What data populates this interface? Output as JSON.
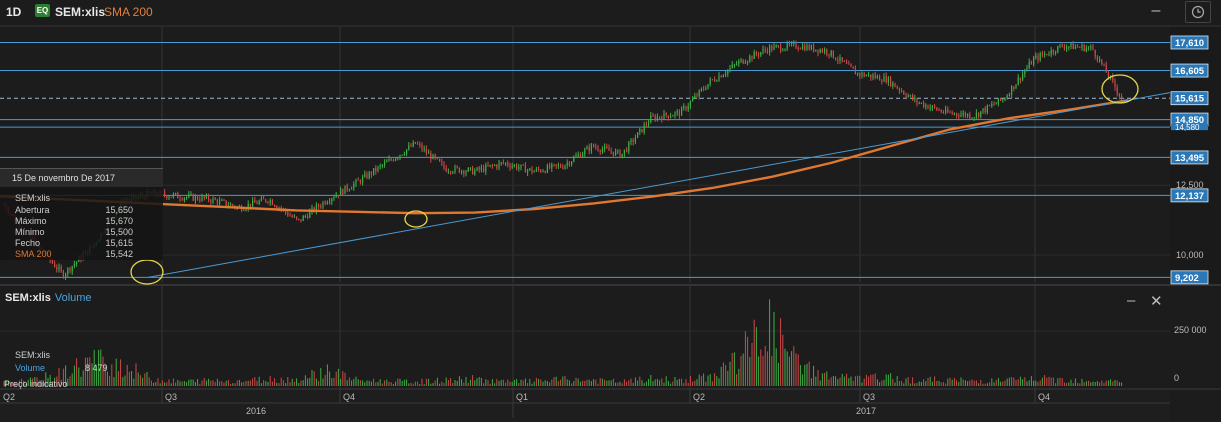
{
  "header": {
    "timeframe": "1D",
    "instrument_badge": "EQ",
    "symbol": "SEM:xlis",
    "indicator": "SMA 200",
    "minimize_icon": "minimize-icon",
    "clock_icon": "clock-icon"
  },
  "tooltip": {
    "date": "15 De novembro De 2017",
    "symbol": "SEM:xlis",
    "rows": [
      {
        "label": "Abertura",
        "value": "15,650"
      },
      {
        "label": "Máximo",
        "value": "15,670"
      },
      {
        "label": "Mínimo",
        "value": "15,500"
      },
      {
        "label": "Fecho",
        "value": "15,615"
      },
      {
        "label": "SMA 200",
        "value": "15,542"
      }
    ]
  },
  "volume_panel": {
    "symbol": "SEM:xlis",
    "indicator": "Volume",
    "info_symbol": "SEM:xlis",
    "info_label": "Volume",
    "info_value": "8 479",
    "note": "Preço indicativo",
    "minimize_icon": "minimize-icon",
    "close_icon": "close-icon"
  },
  "colors": {
    "background": "#1c1c1c",
    "up": "#3cb043",
    "down": "#d04848",
    "sma": "#e07830",
    "level_line": "#4a9ad4",
    "label_box": "#2a78b8",
    "highlight_circle": "#e6d84a"
  },
  "chart_data": {
    "type": "candlestick",
    "y_range": [
      9000,
      18200
    ],
    "price_labels": [
      "17,610",
      "16,605",
      "15,615",
      "14,850",
      "13,495",
      "12,500",
      "12,137",
      "10,000",
      "9,202"
    ],
    "obscured_label_fragment": "14,580",
    "quarter_labels": [
      "Q2",
      "Q3",
      "Q4",
      "Q1",
      "Q2",
      "Q3",
      "Q4"
    ],
    "year_labels": [
      "2016",
      "2017"
    ],
    "volume_labels": [
      "250 000",
      "0"
    ],
    "horizontal_levels": [
      17610,
      16605,
      15615,
      14850,
      14580,
      13495,
      12137,
      9202
    ],
    "trendline": [
      {
        "at": "Q3 2016 low",
        "price": 9202
      },
      {
        "at": "Nov 2017",
        "price": 15542
      }
    ],
    "sma200_series": [
      12100,
      12000,
      11900,
      11800,
      11700,
      11600,
      11550,
      11500,
      11520,
      11650,
      11850,
      12100,
      12400,
      12800,
      13300,
      13900,
      14500,
      14900,
      15200,
      15542
    ],
    "price_series": [
      11800,
      10500,
      9300,
      10300,
      11900,
      12200,
      12100,
      12000,
      11700,
      12000,
      11200,
      12000,
      12600,
      13300,
      14000,
      13100,
      13000,
      13300,
      13000,
      13200,
      13900,
      13600,
      14900,
      15100,
      16200,
      16900,
      17400,
      17500,
      17300,
      16500,
      16300,
      15500,
      15100,
      15000,
      15600,
      17000,
      17500,
      17400,
      15615
    ],
    "volume_series": [
      5,
      8,
      18,
      36,
      30,
      10,
      6,
      8,
      7,
      10,
      9,
      22,
      8,
      7,
      6,
      8,
      10,
      6,
      7,
      9,
      8,
      6,
      10,
      8,
      12,
      40,
      85,
      30,
      14,
      10,
      12,
      8,
      9,
      7,
      8,
      10,
      9,
      8,
      6
    ],
    "highlights": [
      "Q3 2016 low",
      "Q4 2016 trendline touch",
      "Nov 2017 trendline/SMA touch"
    ]
  }
}
